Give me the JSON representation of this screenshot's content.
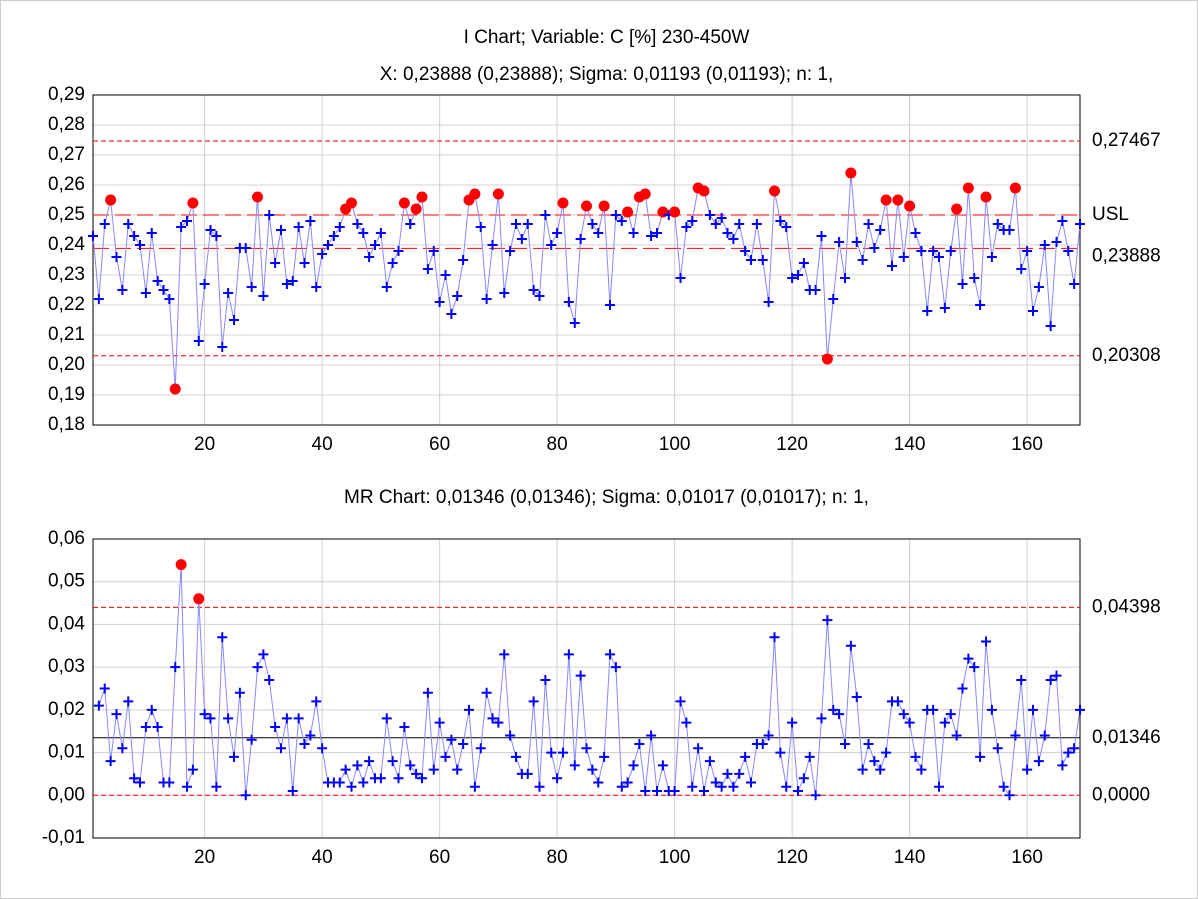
{
  "chart_data": [
    {
      "type": "line",
      "title": "I Chart; Variable: C [%] 230-450W",
      "subtitle": "X: 0,23888 (0,23888); Sigma: 0,01193 (0,01193); n: 1,",
      "x": [
        1,
        2,
        3,
        4,
        5,
        6,
        7,
        8,
        9,
        10,
        11,
        12,
        13,
        14,
        15,
        16,
        17,
        18,
        19,
        20,
        21,
        22,
        23,
        24,
        25,
        26,
        27,
        28,
        29,
        30,
        31,
        32,
        33,
        34,
        35,
        36,
        37,
        38,
        39,
        40,
        41,
        42,
        43,
        44,
        45,
        46,
        47,
        48,
        49,
        50,
        51,
        52,
        53,
        54,
        55,
        56,
        57,
        58,
        59,
        60,
        61,
        62,
        63,
        64,
        65,
        66,
        67,
        68,
        69,
        70,
        71,
        72,
        73,
        74,
        75,
        76,
        77,
        78,
        79,
        80,
        81,
        82,
        83,
        84,
        85,
        86,
        87,
        88,
        89,
        90,
        91,
        92,
        93,
        94,
        95,
        96,
        97,
        98,
        99,
        100,
        101,
        102,
        103,
        104,
        105,
        106,
        107,
        108,
        109,
        110,
        111,
        112,
        113,
        114,
        115,
        116,
        117,
        118,
        119,
        120,
        121,
        122,
        123,
        124,
        125,
        126,
        127,
        128,
        129,
        130,
        131,
        132,
        133,
        134,
        135,
        136,
        137,
        138,
        139,
        140,
        141,
        142,
        143,
        144,
        145,
        146,
        147,
        148,
        149,
        150,
        151,
        152,
        153,
        154,
        155,
        156,
        157,
        158,
        159,
        160,
        161,
        162,
        163,
        164,
        165,
        166,
        167,
        168,
        169
      ],
      "series": [
        {
          "name": "I",
          "color": "#0000ff",
          "line_color": "#8888ff",
          "flag_color": "#ff0000",
          "values": [
            0.243,
            0.222,
            0.247,
            0.255,
            0.236,
            0.225,
            0.247,
            0.243,
            0.24,
            0.224,
            0.244,
            0.228,
            0.225,
            0.222,
            0.192,
            0.246,
            0.248,
            0.254,
            0.208,
            0.227,
            0.245,
            0.243,
            0.206,
            0.224,
            0.215,
            0.239,
            0.239,
            0.226,
            0.256,
            0.223,
            0.25,
            0.234,
            0.245,
            0.227,
            0.228,
            0.246,
            0.234,
            0.248,
            0.226,
            0.237,
            0.24,
            0.243,
            0.246,
            0.252,
            0.254,
            0.247,
            0.244,
            0.236,
            0.24,
            0.244,
            0.226,
            0.234,
            0.238,
            0.254,
            0.247,
            0.252,
            0.256,
            0.232,
            0.238,
            0.221,
            0.23,
            0.217,
            0.223,
            0.235,
            0.255,
            0.257,
            0.246,
            0.222,
            0.24,
            0.257,
            0.224,
            0.238,
            0.247,
            0.242,
            0.247,
            0.225,
            0.223,
            0.25,
            0.24,
            0.244,
            0.254,
            0.221,
            0.214,
            0.242,
            0.253,
            0.247,
            0.244,
            0.253,
            0.22,
            0.25,
            0.248,
            0.251,
            0.244,
            0.256,
            0.257,
            0.243,
            0.244,
            0.251,
            0.25,
            0.251,
            0.229,
            0.246,
            0.248,
            0.259,
            0.258,
            0.25,
            0.247,
            0.249,
            0.244,
            0.242,
            0.247,
            0.238,
            0.235,
            0.247,
            0.235,
            0.221,
            0.258,
            0.248,
            0.246,
            0.229,
            0.23,
            0.234,
            0.225,
            0.225,
            0.243,
            0.202,
            0.222,
            0.241,
            0.229,
            0.264,
            0.241,
            0.235,
            0.247,
            0.239,
            0.245,
            0.255,
            0.233,
            0.255,
            0.236,
            0.253,
            0.244,
            0.238,
            0.218,
            0.238,
            0.236,
            0.219,
            0.238,
            0.252,
            0.227,
            0.259,
            0.229,
            0.22,
            0.256,
            0.236,
            0.247,
            0.245,
            0.245,
            0.259,
            0.232,
            0.238,
            0.218,
            0.226,
            0.24,
            0.213,
            0.241,
            0.248,
            0.238,
            0.227,
            0.247
          ]
        }
      ],
      "limits": [
        {
          "value": 0.27467,
          "label": "0,27467",
          "color": "#ff0000",
          "style": "short",
          "flag": "above"
        },
        {
          "value": 0.25,
          "label": "USL",
          "color": "#ff0000",
          "style": "long",
          "flag": "above"
        },
        {
          "value": 0.23888,
          "label": "0,23888",
          "color": "#ff0000",
          "style": "long"
        },
        {
          "value": 0.20308,
          "label": "0,20308",
          "color": "#ff0000",
          "style": "short",
          "flag": "below"
        }
      ],
      "xlim": [
        1,
        169
      ],
      "xticks": [
        20,
        40,
        60,
        80,
        100,
        120,
        140,
        160
      ],
      "ylim": [
        0.18,
        0.29
      ],
      "yticks": [
        {
          "value": 0.18,
          "label": "0,18"
        },
        {
          "value": 0.19,
          "label": "0,19"
        },
        {
          "value": 0.2,
          "label": "0,20"
        },
        {
          "value": 0.21,
          "label": "0,21"
        },
        {
          "value": 0.22,
          "label": "0,22"
        },
        {
          "value": 0.23,
          "label": "0,23"
        },
        {
          "value": 0.24,
          "label": "0,24"
        },
        {
          "value": 0.25,
          "label": "0,25"
        },
        {
          "value": 0.26,
          "label": "0,26"
        },
        {
          "value": 0.27,
          "label": "0,27"
        },
        {
          "value": 0.28,
          "label": "0,28"
        },
        {
          "value": 0.29,
          "label": "0,29"
        }
      ],
      "grid": true
    },
    {
      "type": "line",
      "title": "MR Chart: 0,01346 (0,01346); Sigma: 0,01017 (0,01017); n: 1,",
      "x": [
        1,
        2,
        3,
        4,
        5,
        6,
        7,
        8,
        9,
        10,
        11,
        12,
        13,
        14,
        15,
        16,
        17,
        18,
        19,
        20,
        21,
        22,
        23,
        24,
        25,
        26,
        27,
        28,
        29,
        30,
        31,
        32,
        33,
        34,
        35,
        36,
        37,
        38,
        39,
        40,
        41,
        42,
        43,
        44,
        45,
        46,
        47,
        48,
        49,
        50,
        51,
        52,
        53,
        54,
        55,
        56,
        57,
        58,
        59,
        60,
        61,
        62,
        63,
        64,
        65,
        66,
        67,
        68,
        69,
        70,
        71,
        72,
        73,
        74,
        75,
        76,
        77,
        78,
        79,
        80,
        81,
        82,
        83,
        84,
        85,
        86,
        87,
        88,
        89,
        90,
        91,
        92,
        93,
        94,
        95,
        96,
        97,
        98,
        99,
        100,
        101,
        102,
        103,
        104,
        105,
        106,
        107,
        108,
        109,
        110,
        111,
        112,
        113,
        114,
        115,
        116,
        117,
        118,
        119,
        120,
        121,
        122,
        123,
        124,
        125,
        126,
        127,
        128,
        129,
        130,
        131,
        132,
        133,
        134,
        135,
        136,
        137,
        138,
        139,
        140,
        141,
        142,
        143,
        144,
        145,
        146,
        147,
        148,
        149,
        150,
        151,
        152,
        153,
        154,
        155,
        156,
        157,
        158,
        159,
        160,
        161,
        162,
        163,
        164,
        165,
        166,
        167,
        168,
        169
      ],
      "series": [
        {
          "name": "MR",
          "color": "#0000ff",
          "line_color": "#8888ff",
          "flag_color": "#ff0000",
          "values": [
            null,
            0.021,
            0.025,
            0.008,
            0.019,
            0.011,
            0.022,
            0.004,
            0.003,
            0.016,
            0.02,
            0.016,
            0.003,
            0.003,
            0.03,
            0.054,
            0.002,
            0.006,
            0.046,
            0.019,
            0.018,
            0.002,
            0.037,
            0.018,
            0.009,
            0.024,
            0.0,
            0.013,
            0.03,
            0.033,
            0.027,
            0.016,
            0.011,
            0.018,
            0.001,
            0.018,
            0.012,
            0.014,
            0.022,
            0.011,
            0.003,
            0.003,
            0.003,
            0.006,
            0.002,
            0.007,
            0.003,
            0.008,
            0.004,
            0.004,
            0.018,
            0.008,
            0.004,
            0.016,
            0.007,
            0.005,
            0.004,
            0.024,
            0.006,
            0.017,
            0.009,
            0.013,
            0.006,
            0.012,
            0.02,
            0.002,
            0.011,
            0.024,
            0.018,
            0.017,
            0.033,
            0.014,
            0.009,
            0.005,
            0.005,
            0.022,
            0.002,
            0.027,
            0.01,
            0.004,
            0.01,
            0.033,
            0.007,
            0.028,
            0.011,
            0.006,
            0.003,
            0.009,
            0.033,
            0.03,
            0.002,
            0.003,
            0.007,
            0.012,
            0.001,
            0.014,
            0.001,
            0.007,
            0.001,
            0.001,
            0.022,
            0.017,
            0.002,
            0.011,
            0.001,
            0.008,
            0.003,
            0.002,
            0.005,
            0.002,
            0.005,
            0.009,
            0.003,
            0.012,
            0.012,
            0.014,
            0.037,
            0.01,
            0.002,
            0.017,
            0.001,
            0.004,
            0.009,
            0.0,
            0.018,
            0.041,
            0.02,
            0.019,
            0.012,
            0.035,
            0.023,
            0.006,
            0.012,
            0.008,
            0.006,
            0.01,
            0.022,
            0.022,
            0.019,
            0.017,
            0.009,
            0.006,
            0.02,
            0.02,
            0.002,
            0.017,
            0.019,
            0.014,
            0.025,
            0.032,
            0.03,
            0.009,
            0.036,
            0.02,
            0.011,
            0.002,
            0.0,
            0.014,
            0.027,
            0.006,
            0.02,
            0.008,
            0.014,
            0.027,
            0.028,
            0.007,
            0.01,
            0.011,
            0.02
          ]
        }
      ],
      "limits": [
        {
          "value": 0.04398,
          "label": "0,04398",
          "color": "#ff0000",
          "style": "short",
          "flag": "above"
        },
        {
          "value": 0.01346,
          "label": "0,01346",
          "color": "#000000",
          "style": "solid"
        },
        {
          "value": 0,
          "label": "0,0000",
          "color": "#ff0000",
          "style": "short"
        }
      ],
      "xlim": [
        1,
        169
      ],
      "xticks": [
        20,
        40,
        60,
        80,
        100,
        120,
        140,
        160
      ],
      "ylim": [
        -0.01,
        0.06
      ],
      "yticks": [
        {
          "value": -0.01,
          "label": "-0,01"
        },
        {
          "value": 0,
          "label": "0,00"
        },
        {
          "value": 0.01,
          "label": "0,01"
        },
        {
          "value": 0.02,
          "label": "0,02"
        },
        {
          "value": 0.03,
          "label": "0,03"
        },
        {
          "value": 0.04,
          "label": "0,04"
        },
        {
          "value": 0.05,
          "label": "0,05"
        },
        {
          "value": 0.06,
          "label": "0,06"
        }
      ],
      "grid": true
    }
  ]
}
